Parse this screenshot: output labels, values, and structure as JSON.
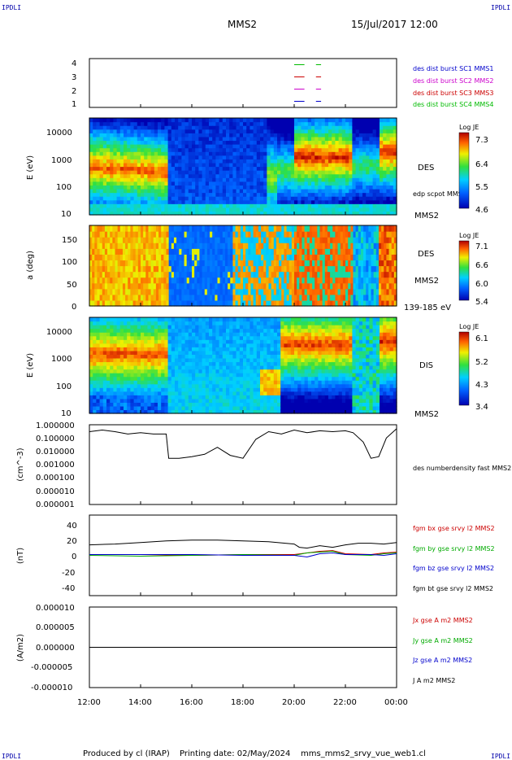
{
  "header": {
    "corner_label": "IPDLI",
    "spacecraft": "MMS2",
    "date_time": "15/Jul/2017 12:00"
  },
  "footer": {
    "credit": "Produced by cl (IRAP)",
    "printing_date": "Printing date: 02/May/2024",
    "script_name": "mms_mms2_srvy_vue_web1.cl"
  },
  "time_axis": {
    "ticks": [
      "12:00",
      "14:00",
      "16:00",
      "18:00",
      "20:00",
      "22:00",
      "00:00"
    ],
    "hours": [
      12,
      14,
      16,
      18,
      20,
      22,
      24
    ]
  },
  "chart_data": [
    {
      "panel": "burst-availability",
      "type": "line",
      "y_ticks": [
        "1",
        "2",
        "3",
        "4"
      ],
      "ylim": [
        0.5,
        4.5
      ],
      "series": [
        {
          "name": "des dist burst SC1 MMS1",
          "color": "#0000cc",
          "y": 1
        },
        {
          "name": "des dist burst SC2 MMS2",
          "color": "#cc00cc",
          "y": 2
        },
        {
          "name": "des dist burst SC3 MMS3",
          "color": "#cc0000",
          "y": 3
        },
        {
          "name": "des dist burst SC4 MMS4",
          "color": "#00bb00",
          "y": 4
        }
      ],
      "segments_hours": [
        [
          20.0,
          20.4
        ],
        [
          20.85,
          21.05
        ]
      ]
    },
    {
      "panel": "des-energy-spectrogram",
      "type": "heatmap",
      "ylabel": "E (eV)",
      "y_scale": "log",
      "ylim": [
        10,
        30000
      ],
      "y_ticks": [
        "10",
        "100",
        "1000",
        "10000"
      ],
      "side_label": "DES",
      "overlay_label": "edp scpot MMS2",
      "bottom_label": "MMS2",
      "colorbar": {
        "title": "Log JE",
        "ticks": [
          "7.3",
          "6.4",
          "5.5",
          "4.6"
        ],
        "range": [
          4.6,
          7.3
        ]
      }
    },
    {
      "panel": "des-pitch-angle",
      "type": "heatmap",
      "ylabel": "a (deg)",
      "ylim": [
        0,
        180
      ],
      "y_ticks": [
        "0",
        "50",
        "100",
        "150"
      ],
      "side_label": "DES",
      "bottom_label": "MMS2",
      "energy_range": "139-185 eV",
      "colorbar": {
        "title": "Log JE",
        "ticks": [
          "7.1",
          "6.6",
          "6.0",
          "5.4"
        ],
        "range": [
          5.4,
          7.1
        ]
      }
    },
    {
      "panel": "dis-energy-spectrogram",
      "type": "heatmap",
      "ylabel": "E (eV)",
      "y_scale": "log",
      "ylim": [
        10,
        30000
      ],
      "y_ticks": [
        "10",
        "100",
        "1000",
        "10000"
      ],
      "side_label": "DIS",
      "bottom_label": "MMS2",
      "colorbar": {
        "title": "Log JE",
        "ticks": [
          "6.1",
          "5.2",
          "4.3",
          "3.4"
        ],
        "range": [
          3.4,
          6.1
        ]
      }
    },
    {
      "panel": "number-density",
      "type": "line",
      "ylabel": "(cm^-3)",
      "y_scale": "log",
      "ylim": [
        1e-06,
        1.0
      ],
      "y_ticks": [
        "1.000000",
        "0.100000",
        "0.010000",
        "0.001000",
        "0.000100",
        "0.000010",
        "0.000001"
      ],
      "series": [
        {
          "name": "des numberdensity fast MMS2",
          "color": "#000000",
          "x": [
            12.0,
            12.5,
            13.0,
            13.5,
            14.0,
            14.5,
            15.0,
            15.1,
            15.5,
            16.0,
            16.5,
            17.0,
            17.5,
            18.0,
            18.5,
            19.0,
            19.5,
            20.0,
            20.5,
            21.0,
            21.5,
            22.0,
            22.3,
            22.7,
            23.0,
            23.3,
            23.6,
            24.0
          ],
          "y": [
            0.3,
            0.4,
            0.3,
            0.2,
            0.25,
            0.2,
            0.2,
            0.003,
            0.003,
            0.004,
            0.006,
            0.02,
            0.005,
            0.003,
            0.08,
            0.3,
            0.2,
            0.4,
            0.25,
            0.35,
            0.3,
            0.35,
            0.25,
            0.05,
            0.003,
            0.004,
            0.1,
            0.5
          ]
        }
      ]
    },
    {
      "panel": "magnetic-field",
      "type": "line",
      "ylabel": "(nT)",
      "ylim": [
        -50,
        50
      ],
      "y_ticks": [
        "40",
        "20",
        "0",
        "-20",
        "-40"
      ],
      "series": [
        {
          "name": "fgm bx gse srvy l2 MMS2",
          "color": "#cc0000",
          "x": [
            12,
            14,
            16,
            18,
            20,
            20.5,
            21,
            21.5,
            22,
            23,
            23.5,
            24
          ],
          "y": [
            1,
            1,
            0,
            1,
            1,
            3,
            5,
            6,
            2,
            1,
            3,
            4
          ]
        },
        {
          "name": "fgm by gse srvy l2 MMS2",
          "color": "#00aa00",
          "x": [
            12,
            14,
            16,
            18,
            20,
            20.5,
            21,
            21.5,
            22,
            23,
            23.5,
            24
          ],
          "y": [
            0,
            -1,
            0,
            1,
            0,
            3,
            4,
            5,
            1,
            0,
            2,
            3
          ]
        },
        {
          "name": "fgm bz gse srvy l2 MMS2",
          "color": "#0000cc",
          "x": [
            12,
            14,
            16,
            18,
            20,
            20.5,
            21,
            21.5,
            22,
            23,
            23.5,
            24
          ],
          "y": [
            1,
            1,
            1,
            0,
            0,
            -2,
            2,
            3,
            1,
            1,
            0,
            2
          ]
        },
        {
          "name": "fgm bt gse srvy l2 MMS2",
          "color": "#000000",
          "x": [
            12,
            13,
            14,
            15,
            16,
            17,
            18,
            19,
            20,
            20.2,
            20.5,
            21,
            21.5,
            22,
            22.5,
            23,
            23.5,
            24
          ],
          "y": [
            13,
            14,
            16,
            18,
            19,
            19,
            18,
            17,
            14,
            10,
            9,
            12,
            10,
            13,
            15,
            15,
            14,
            16
          ]
        }
      ]
    },
    {
      "panel": "current-density",
      "type": "line",
      "ylabel": "(A/m2)",
      "ylim": [
        -0.0001,
        0.0001
      ],
      "y_ticks": [
        "0.000010",
        "0.000005",
        "0.000000",
        "-0.000005",
        "-0.000010"
      ],
      "series": [
        {
          "name": "Jx gse A m2 MMS2",
          "color": "#cc0000",
          "x": [
            12,
            24
          ],
          "y": [
            0,
            0
          ]
        },
        {
          "name": "Jy gse A m2 MMS2",
          "color": "#00aa00",
          "x": [
            12,
            24
          ],
          "y": [
            0,
            0
          ]
        },
        {
          "name": "Jz gse A m2 MMS2",
          "color": "#0000cc",
          "x": [
            12,
            24
          ],
          "y": [
            0,
            0
          ]
        },
        {
          "name": "J A m2 MMS2",
          "color": "#000000",
          "x": [
            12,
            24
          ],
          "y": [
            0,
            0
          ]
        }
      ]
    }
  ]
}
